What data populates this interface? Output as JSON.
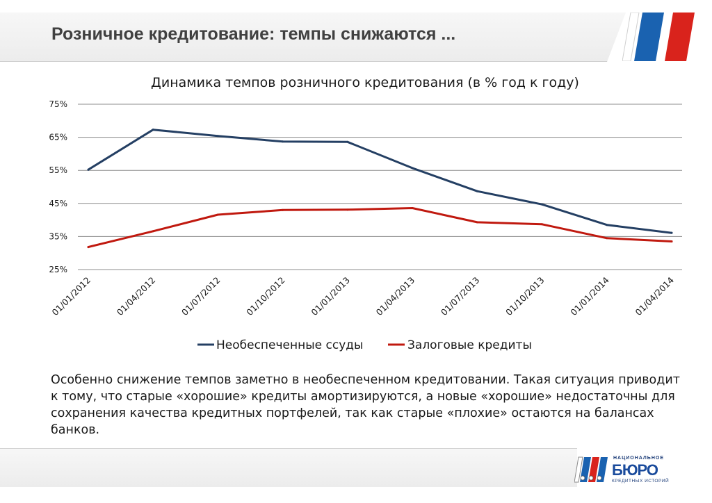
{
  "slide": {
    "title": "Розничное кредитование: темпы снижаются ...",
    "paragraph": "Особенно снижение темпов заметно в необеспеченном кредитовании. Такая ситуация приводит к тому, что старые «хорошие» кредиты амортизируются, а новые «хорошие» недостаточны для сохранения качества кредитных портфелей, так как старые «плохие» остаются на балансах банков."
  },
  "logo": {
    "top": "НАЦИОНАЛЬНОЕ",
    "main": "БЮРО",
    "bottom": "КРЕДИТНЫХ ИСТОРИЙ"
  },
  "colors": {
    "series1": "#243f63",
    "series2": "#c0190f",
    "stripe_blue": "#1a62b0",
    "stripe_red": "#d9231c"
  },
  "chart_data": {
    "type": "line",
    "title": "Динамика темпов розничного кредитования (в % год к году)",
    "x": [
      "01/01/2012",
      "01/04/2012",
      "01/07/2012",
      "01/10/2012",
      "01/01/2013",
      "01/04/2013",
      "01/07/2013",
      "01/10/2013",
      "01/01/2014",
      "01/04/2014"
    ],
    "ylim": [
      25,
      75
    ],
    "yticks": [
      75,
      65,
      55,
      45,
      35,
      25
    ],
    "ytick_labels": [
      "75%",
      "65%",
      "55%",
      "45%",
      "35%",
      "25%"
    ],
    "series": [
      {
        "name": "Необеспеченные ссуды",
        "values": [
          55.2,
          67.3,
          65.4,
          63.7,
          63.6,
          55.7,
          48.7,
          44.7,
          38.5,
          36.1
        ]
      },
      {
        "name": "Залоговые кредиты",
        "values": [
          31.8,
          36.6,
          41.6,
          43.0,
          43.1,
          43.6,
          39.3,
          38.7,
          34.5,
          33.5
        ]
      }
    ],
    "grid": true,
    "legend": "bottom"
  }
}
